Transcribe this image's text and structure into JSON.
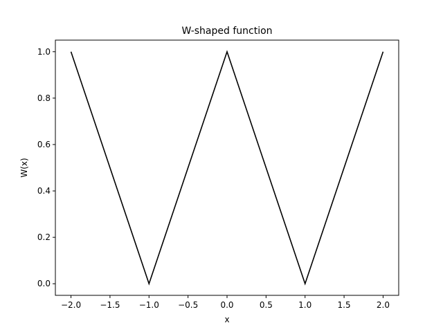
{
  "chart_data": {
    "type": "line",
    "title": "W-shaped function",
    "xlabel": "x",
    "ylabel": "W(x)",
    "xlim": [
      -2.2,
      2.2
    ],
    "ylim": [
      -0.05,
      1.05
    ],
    "grid": false,
    "x_ticks": [
      -2.0,
      -1.5,
      -1.0,
      -0.5,
      0.0,
      0.5,
      1.0,
      1.5,
      2.0
    ],
    "x_tick_labels": [
      "−2.0",
      "−1.5",
      "−1.0",
      "−0.5",
      "0.0",
      "0.5",
      "1.0",
      "1.5",
      "2.0"
    ],
    "y_ticks": [
      0.0,
      0.2,
      0.4,
      0.6,
      0.8,
      1.0
    ],
    "y_tick_labels": [
      "0.0",
      "0.2",
      "0.4",
      "0.6",
      "0.8",
      "1.0"
    ],
    "series": [
      {
        "color": "#000000",
        "x": [
          -2.0,
          -1.0,
          0.0,
          1.0,
          2.0
        ],
        "y": [
          1.0,
          0.0,
          1.0,
          0.0,
          1.0
        ]
      }
    ]
  }
}
